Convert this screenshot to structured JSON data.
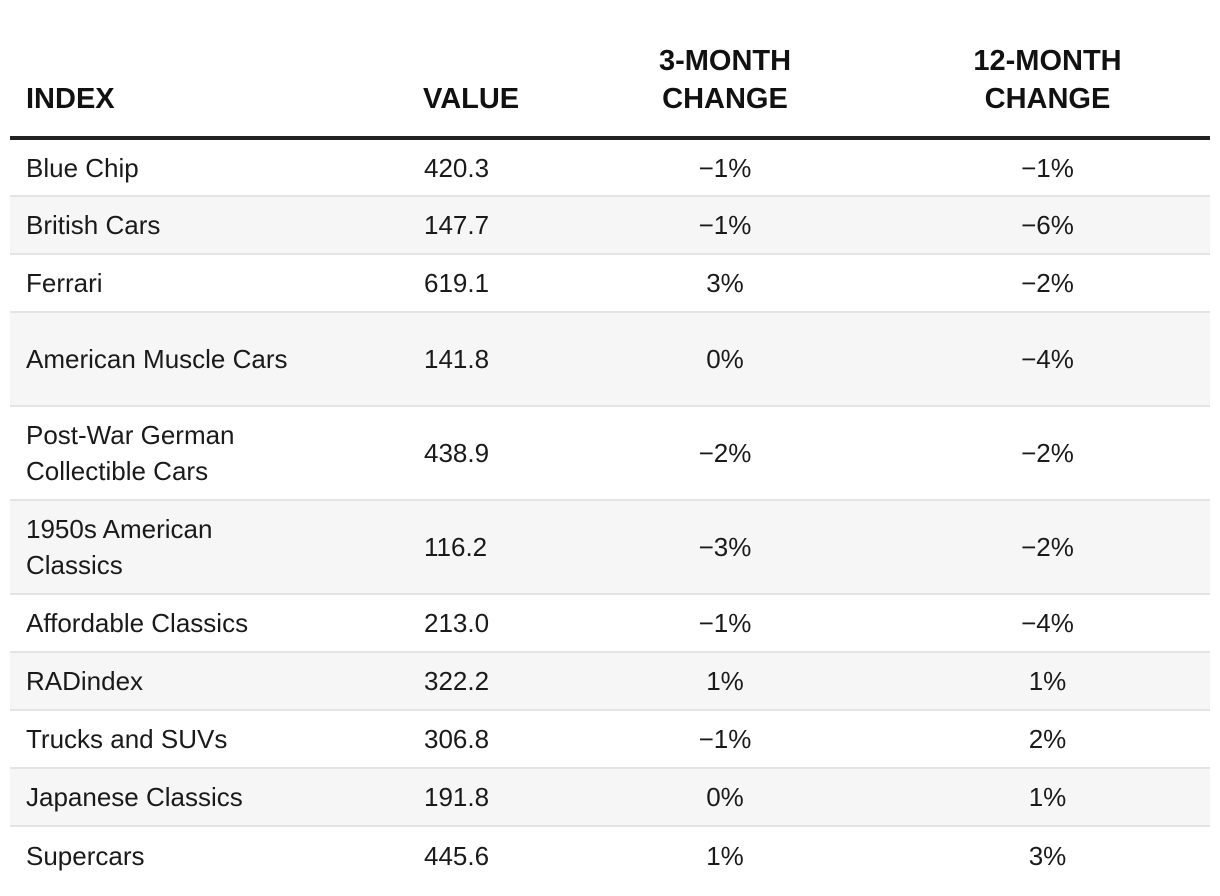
{
  "table": {
    "headers": {
      "index": "INDEX",
      "value": "VALUE",
      "change_3m": [
        "3-MONTH",
        "CHANGE"
      ],
      "change_12m": [
        "12-MONTH",
        "CHANGE"
      ]
    },
    "rows": [
      {
        "index": "Blue Chip",
        "value": "420.3",
        "change_3m": "−1%",
        "change_12m": "−1%"
      },
      {
        "index": "British Cars",
        "value": "147.7",
        "change_3m": "−1%",
        "change_12m": "−6%"
      },
      {
        "index": "Ferrari",
        "value": "619.1",
        "change_3m": "3%",
        "change_12m": "−2%"
      },
      {
        "index": "American Muscle Cars",
        "value": "141.8",
        "change_3m": "0%",
        "change_12m": "−4%"
      },
      {
        "index": "Post-War German Collectible Cars",
        "value": "438.9",
        "change_3m": "−2%",
        "change_12m": "−2%"
      },
      {
        "index": "1950s American Classics",
        "value": "116.2",
        "change_3m": "−3%",
        "change_12m": "−2%"
      },
      {
        "index": "Affordable Classics",
        "value": "213.0",
        "change_3m": "−1%",
        "change_12m": "−4%"
      },
      {
        "index": "RADindex",
        "value": "322.2",
        "change_3m": "1%",
        "change_12m": "1%"
      },
      {
        "index": "Trucks and SUVs",
        "value": "306.8",
        "change_3m": "−1%",
        "change_12m": "2%"
      },
      {
        "index": "Japanese Classics",
        "value": "191.8",
        "change_3m": "0%",
        "change_12m": "1%"
      },
      {
        "index": "Supercars",
        "value": "445.6",
        "change_3m": "1%",
        "change_12m": "3%"
      }
    ]
  }
}
